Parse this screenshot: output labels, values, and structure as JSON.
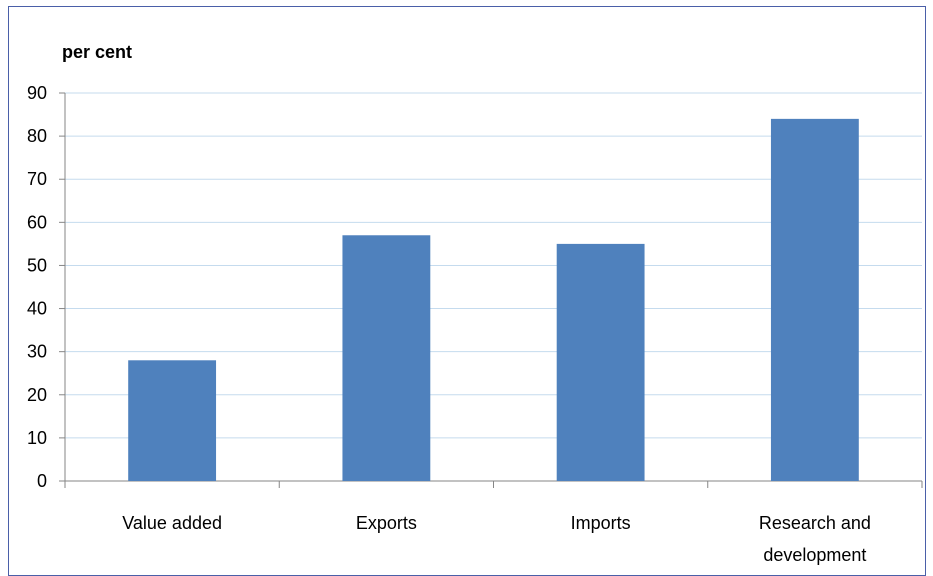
{
  "chart_data": {
    "type": "bar",
    "title": "",
    "ylabel": "per cent",
    "xlabel": "",
    "categories": [
      "Value added",
      "Exports",
      "Imports",
      "Research and development"
    ],
    "category_label_lines": [
      [
        "Value added"
      ],
      [
        "Exports"
      ],
      [
        "Imports"
      ],
      [
        "Research and",
        "development"
      ]
    ],
    "values": [
      28,
      57,
      55,
      84
    ],
    "ylim": [
      0,
      90
    ],
    "yticks": [
      0,
      10,
      20,
      30,
      40,
      50,
      60,
      70,
      80,
      90
    ],
    "grid": true,
    "legend": "none",
    "colors": {
      "bar": "#4f81bd",
      "grid": "#c5dbee",
      "axis": "#868686",
      "frame": "#4a5fa8"
    }
  }
}
